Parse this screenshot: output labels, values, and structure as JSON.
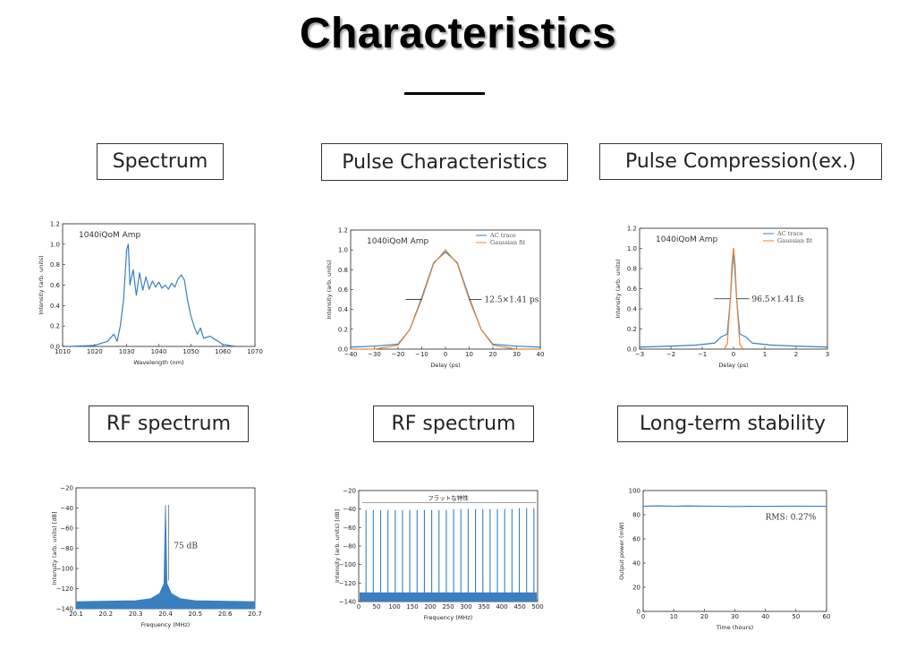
{
  "page": {
    "title": "Characteristics",
    "labels": [
      "Spectrum",
      "Pulse Characteristics",
      "Pulse Compression(ex.)",
      "RF spectrum",
      "RF spectrum",
      "Long-term stability"
    ]
  },
  "colors": {
    "trace": "#3a7fc0",
    "fit": "#e08a3c",
    "axis": "#222222",
    "label_border": "#333333"
  },
  "chart_data": [
    {
      "type": "line",
      "annotation": "1040iQoM Amp",
      "xlabel": "Wavelength (nm)",
      "ylabel": "Intensity (arb. units)",
      "xlim": [
        1010,
        1070
      ],
      "ylim": [
        0,
        1.2
      ],
      "xticks": [
        "1010",
        "1020",
        "1030",
        "1040",
        "1050",
        "1060",
        "1070"
      ],
      "yticks": [
        "0.0",
        "0.2",
        "0.4",
        "0.6",
        "0.8",
        "1.0",
        "1.2"
      ],
      "series": [
        {
          "x": [
            1012,
            1020,
            1024,
            1026,
            1027,
            1028,
            1029,
            1030,
            1030.5,
            1031,
            1032,
            1033,
            1034,
            1035,
            1036,
            1037,
            1038,
            1039,
            1040,
            1041,
            1042,
            1043,
            1044,
            1045,
            1046,
            1047,
            1048,
            1049,
            1050,
            1051,
            1052,
            1053,
            1054,
            1056,
            1060,
            1064
          ],
          "y": [
            0.0,
            0.01,
            0.05,
            0.12,
            0.05,
            0.2,
            0.45,
            0.95,
            1.0,
            0.6,
            0.75,
            0.5,
            0.72,
            0.55,
            0.68,
            0.56,
            0.64,
            0.58,
            0.63,
            0.57,
            0.6,
            0.56,
            0.62,
            0.58,
            0.66,
            0.7,
            0.65,
            0.45,
            0.3,
            0.2,
            0.12,
            0.18,
            0.08,
            0.1,
            0.02,
            0.0
          ]
        }
      ]
    },
    {
      "type": "line",
      "annotation": "1040iQoM Amp",
      "xlabel": "Delay (ps)",
      "ylabel": "Intensity (arb. units)",
      "xlim": [
        -40,
        40
      ],
      "ylim": [
        0,
        1.2
      ],
      "xticks": [
        "-40",
        "-30",
        "-20",
        "-10",
        "0",
        "10",
        "20",
        "30",
        "40"
      ],
      "yticks": [
        "0.0",
        "0.2",
        "0.4",
        "0.6",
        "0.8",
        "1.0",
        "1.2"
      ],
      "legend": [
        "AC trace",
        "Gaussian fit"
      ],
      "width_label": "12.5×1.41 ps",
      "series": [
        {
          "name": "AC trace",
          "x": [
            -40,
            -30,
            -20,
            -15,
            -10,
            -5,
            0,
            5,
            10,
            15,
            20,
            30,
            40
          ],
          "y": [
            0.02,
            0.03,
            0.05,
            0.2,
            0.52,
            0.87,
            0.98,
            0.87,
            0.52,
            0.2,
            0.05,
            0.03,
            0.02
          ]
        },
        {
          "name": "Gaussian fit",
          "x": [
            -40,
            -30,
            -20,
            -15,
            -10,
            -5,
            0,
            5,
            10,
            15,
            20,
            30,
            40
          ],
          "y": [
            0.0,
            0.0,
            0.04,
            0.2,
            0.5,
            0.86,
            1.0,
            0.86,
            0.5,
            0.2,
            0.04,
            0.0,
            0.0
          ]
        }
      ]
    },
    {
      "type": "line",
      "annotation": "1040iQoM Amp",
      "xlabel": "Delay (ps)",
      "ylabel": "Intensity (arb. units)",
      "xlim": [
        -3,
        3
      ],
      "ylim": [
        0,
        1.2
      ],
      "xticks": [
        "-3",
        "-2",
        "-1",
        "0",
        "1",
        "2",
        "3"
      ],
      "yticks": [
        "0.0",
        "0.2",
        "0.4",
        "0.6",
        "0.8",
        "1.0",
        "1.2"
      ],
      "legend": [
        "AC trace",
        "Gaussian fit"
      ],
      "width_label": "96.5×1.41 fs",
      "series": [
        {
          "name": "AC trace",
          "x": [
            -3,
            -2,
            -1.2,
            -0.6,
            -0.4,
            -0.2,
            -0.1,
            0,
            0.1,
            0.2,
            0.4,
            0.6,
            1.2,
            2,
            3
          ],
          "y": [
            0.02,
            0.03,
            0.04,
            0.06,
            0.12,
            0.15,
            0.5,
            1.0,
            0.5,
            0.15,
            0.12,
            0.06,
            0.04,
            0.03,
            0.02
          ]
        },
        {
          "name": "Gaussian fit",
          "x": [
            -0.3,
            -0.2,
            -0.1,
            -0.05,
            0,
            0.05,
            0.1,
            0.2,
            0.3
          ],
          "y": [
            0.0,
            0.05,
            0.5,
            0.85,
            1.0,
            0.85,
            0.5,
            0.05,
            0.0
          ]
        }
      ]
    },
    {
      "type": "line",
      "xlabel": "Frequency (MHz)",
      "ylabel": "Intensity (arb. units) [dB]",
      "xlim": [
        20.1,
        20.7
      ],
      "ylim": [
        -140,
        -20
      ],
      "xticks": [
        "20.1",
        "20.2",
        "20.3",
        "20.4",
        "20.5",
        "20.6",
        "20.7"
      ],
      "yticks": [
        "-20",
        "-40",
        "-60",
        "-80",
        "-100",
        "-120",
        "-140"
      ],
      "width_label": "75 dB",
      "series": [
        {
          "x": [
            20.1,
            20.3,
            20.35,
            20.38,
            20.395,
            20.4,
            20.405,
            20.42,
            20.45,
            20.5,
            20.7
          ],
          "y": [
            -133,
            -132,
            -130,
            -125,
            -115,
            -37,
            -115,
            -125,
            -130,
            -132,
            -133
          ]
        }
      ]
    },
    {
      "type": "line",
      "xlabel": "Frequency (MHz)",
      "ylabel": "Intensity (arb. units) [dB]",
      "xlim": [
        0,
        500
      ],
      "ylim": [
        -140,
        -20
      ],
      "xticks": [
        "0",
        "50",
        "100",
        "150",
        "200",
        "250",
        "300",
        "350",
        "400",
        "450",
        "500"
      ],
      "yticks": [
        "-20",
        "-40",
        "-60",
        "-80",
        "-100",
        "-120",
        "-140"
      ],
      "width_label": "フラットな特性",
      "series": [
        {
          "x": [
            20.4,
            40.8,
            61.2,
            81.6,
            102,
            122.4,
            142.8,
            163.2,
            183.6,
            204,
            224.4,
            244.8,
            265.2,
            285.6,
            306,
            326.4,
            346.8,
            367.2,
            387.6,
            408,
            428.4,
            448.8,
            469.2,
            489.6
          ],
          "y": [
            -41,
            -41,
            -41,
            -41,
            -41,
            -41,
            -41,
            -41,
            -41,
            -41,
            -41,
            -41,
            -40,
            -40,
            -40,
            -40,
            -40,
            -40,
            -40,
            -40,
            -40,
            -39,
            -39,
            -39
          ]
        }
      ]
    },
    {
      "type": "line",
      "xlabel": "Time (hours)",
      "ylabel": "Output power (mW)",
      "xlim": [
        0,
        60
      ],
      "ylim": [
        0,
        100
      ],
      "xticks": [
        "0",
        "10",
        "20",
        "30",
        "40",
        "50",
        "60"
      ],
      "yticks": [
        "0",
        "20",
        "40",
        "60",
        "80",
        "100"
      ],
      "width_label": "RMS: 0.27%",
      "series": [
        {
          "x": [
            0,
            5,
            10,
            15,
            20,
            25,
            30,
            35,
            40,
            45,
            50,
            55,
            60
          ],
          "y": [
            87,
            87.3,
            87,
            87.2,
            87.1,
            87,
            86.8,
            87,
            86.9,
            87,
            87.1,
            87,
            87
          ]
        }
      ]
    }
  ]
}
